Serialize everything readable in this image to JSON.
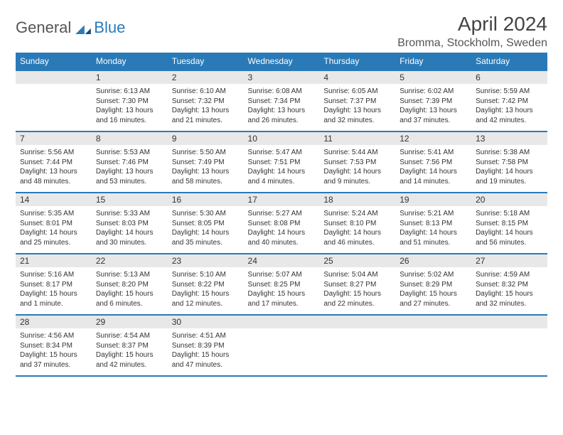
{
  "brand": {
    "general": "General",
    "blue": "Blue"
  },
  "title": "April 2024",
  "location": "Bromma, Stockholm, Sweden",
  "colors": {
    "header_bg": "#2a7ab8",
    "header_text": "#ffffff",
    "daynum_bg": "#e8e8e8",
    "border": "#2a7ab8",
    "text": "#333333",
    "logo_gray": "#555555",
    "logo_blue": "#2a7ab8",
    "page_bg": "#ffffff"
  },
  "typography": {
    "title_fontsize": 28,
    "location_fontsize": 16,
    "header_fontsize": 12,
    "daynum_fontsize": 12,
    "body_fontsize": 10
  },
  "calendar": {
    "type": "table",
    "columns": [
      "Sunday",
      "Monday",
      "Tuesday",
      "Wednesday",
      "Thursday",
      "Friday",
      "Saturday"
    ],
    "leading_blanks": 1,
    "days": [
      {
        "n": 1,
        "sunrise": "6:13 AM",
        "sunset": "7:30 PM",
        "daylight": "13 hours and 16 minutes."
      },
      {
        "n": 2,
        "sunrise": "6:10 AM",
        "sunset": "7:32 PM",
        "daylight": "13 hours and 21 minutes."
      },
      {
        "n": 3,
        "sunrise": "6:08 AM",
        "sunset": "7:34 PM",
        "daylight": "13 hours and 26 minutes."
      },
      {
        "n": 4,
        "sunrise": "6:05 AM",
        "sunset": "7:37 PM",
        "daylight": "13 hours and 32 minutes."
      },
      {
        "n": 5,
        "sunrise": "6:02 AM",
        "sunset": "7:39 PM",
        "daylight": "13 hours and 37 minutes."
      },
      {
        "n": 6,
        "sunrise": "5:59 AM",
        "sunset": "7:42 PM",
        "daylight": "13 hours and 42 minutes."
      },
      {
        "n": 7,
        "sunrise": "5:56 AM",
        "sunset": "7:44 PM",
        "daylight": "13 hours and 48 minutes."
      },
      {
        "n": 8,
        "sunrise": "5:53 AM",
        "sunset": "7:46 PM",
        "daylight": "13 hours and 53 minutes."
      },
      {
        "n": 9,
        "sunrise": "5:50 AM",
        "sunset": "7:49 PM",
        "daylight": "13 hours and 58 minutes."
      },
      {
        "n": 10,
        "sunrise": "5:47 AM",
        "sunset": "7:51 PM",
        "daylight": "14 hours and 4 minutes."
      },
      {
        "n": 11,
        "sunrise": "5:44 AM",
        "sunset": "7:53 PM",
        "daylight": "14 hours and 9 minutes."
      },
      {
        "n": 12,
        "sunrise": "5:41 AM",
        "sunset": "7:56 PM",
        "daylight": "14 hours and 14 minutes."
      },
      {
        "n": 13,
        "sunrise": "5:38 AM",
        "sunset": "7:58 PM",
        "daylight": "14 hours and 19 minutes."
      },
      {
        "n": 14,
        "sunrise": "5:35 AM",
        "sunset": "8:01 PM",
        "daylight": "14 hours and 25 minutes."
      },
      {
        "n": 15,
        "sunrise": "5:33 AM",
        "sunset": "8:03 PM",
        "daylight": "14 hours and 30 minutes."
      },
      {
        "n": 16,
        "sunrise": "5:30 AM",
        "sunset": "8:05 PM",
        "daylight": "14 hours and 35 minutes."
      },
      {
        "n": 17,
        "sunrise": "5:27 AM",
        "sunset": "8:08 PM",
        "daylight": "14 hours and 40 minutes."
      },
      {
        "n": 18,
        "sunrise": "5:24 AM",
        "sunset": "8:10 PM",
        "daylight": "14 hours and 46 minutes."
      },
      {
        "n": 19,
        "sunrise": "5:21 AM",
        "sunset": "8:13 PM",
        "daylight": "14 hours and 51 minutes."
      },
      {
        "n": 20,
        "sunrise": "5:18 AM",
        "sunset": "8:15 PM",
        "daylight": "14 hours and 56 minutes."
      },
      {
        "n": 21,
        "sunrise": "5:16 AM",
        "sunset": "8:17 PM",
        "daylight": "15 hours and 1 minute."
      },
      {
        "n": 22,
        "sunrise": "5:13 AM",
        "sunset": "8:20 PM",
        "daylight": "15 hours and 6 minutes."
      },
      {
        "n": 23,
        "sunrise": "5:10 AM",
        "sunset": "8:22 PM",
        "daylight": "15 hours and 12 minutes."
      },
      {
        "n": 24,
        "sunrise": "5:07 AM",
        "sunset": "8:25 PM",
        "daylight": "15 hours and 17 minutes."
      },
      {
        "n": 25,
        "sunrise": "5:04 AM",
        "sunset": "8:27 PM",
        "daylight": "15 hours and 22 minutes."
      },
      {
        "n": 26,
        "sunrise": "5:02 AM",
        "sunset": "8:29 PM",
        "daylight": "15 hours and 27 minutes."
      },
      {
        "n": 27,
        "sunrise": "4:59 AM",
        "sunset": "8:32 PM",
        "daylight": "15 hours and 32 minutes."
      },
      {
        "n": 28,
        "sunrise": "4:56 AM",
        "sunset": "8:34 PM",
        "daylight": "15 hours and 37 minutes."
      },
      {
        "n": 29,
        "sunrise": "4:54 AM",
        "sunset": "8:37 PM",
        "daylight": "15 hours and 42 minutes."
      },
      {
        "n": 30,
        "sunrise": "4:51 AM",
        "sunset": "8:39 PM",
        "daylight": "15 hours and 47 minutes."
      }
    ]
  }
}
